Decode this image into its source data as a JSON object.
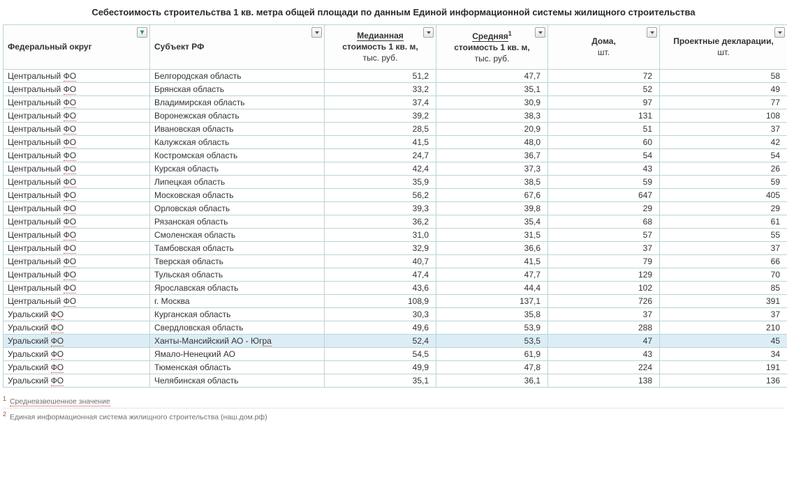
{
  "title": "Себестоимость строительства 1 кв. метра общей площади по данным Единой информационной системы жилищного строительства",
  "headers": {
    "c0": "Федеральный округ",
    "c1": "Субъект РФ",
    "c2a": "Медианная",
    "c2b": "стоимость 1 кв. м,",
    "c2c": "тыс. руб.",
    "c3a": "Средняя",
    "c3sup": "1",
    "c3b": "стоимость 1 кв. м,",
    "c3c": "тыс. руб.",
    "c4a": "Дома,",
    "c4b": "шт.",
    "c5a": "Проектные декларации,",
    "c5b": "шт."
  },
  "fo_prefix": "Центральный ",
  "fo_suffix": "ФО",
  "fo2_prefix": "Уральский ",
  "rows": [
    {
      "fo": 1,
      "subj": "Белгородская область",
      "v2": "51,2",
      "v3": "47,7",
      "v4": "72",
      "v5": "58",
      "hl": false
    },
    {
      "fo": 1,
      "subj": "Брянская область",
      "v2": "33,2",
      "v3": "35,1",
      "v4": "52",
      "v5": "49",
      "hl": false
    },
    {
      "fo": 1,
      "subj": "Владимирская область",
      "v2": "37,4",
      "v3": "30,9",
      "v4": "97",
      "v5": "77",
      "hl": false
    },
    {
      "fo": 1,
      "subj": "Воронежская область",
      "v2": "39,2",
      "v3": "38,3",
      "v4": "131",
      "v5": "108",
      "hl": false
    },
    {
      "fo": 1,
      "subj": "Ивановская область",
      "v2": "28,5",
      "v3": "20,9",
      "v4": "51",
      "v5": "37",
      "hl": false
    },
    {
      "fo": 1,
      "subj": "Калужская область",
      "v2": "41,5",
      "v3": "48,0",
      "v4": "60",
      "v5": "42",
      "hl": false
    },
    {
      "fo": 1,
      "subj": "Костромская область",
      "v2": "24,7",
      "v3": "36,7",
      "v4": "54",
      "v5": "54",
      "hl": false
    },
    {
      "fo": 1,
      "subj": "Курская область",
      "v2": "42,4",
      "v3": "37,3",
      "v4": "43",
      "v5": "26",
      "hl": false
    },
    {
      "fo": 1,
      "subj": "Липецкая область",
      "v2": "35,9",
      "v3": "38,5",
      "v4": "59",
      "v5": "59",
      "hl": false
    },
    {
      "fo": 1,
      "subj": "Московская область",
      "v2": "56,2",
      "v3": "67,6",
      "v4": "647",
      "v5": "405",
      "hl": false
    },
    {
      "fo": 1,
      "subj": "Орловская область",
      "v2": "39,3",
      "v3": "39,8",
      "v4": "29",
      "v5": "29",
      "hl": false
    },
    {
      "fo": 1,
      "subj": "Рязанская область",
      "v2": "36,2",
      "v3": "35,4",
      "v4": "68",
      "v5": "61",
      "hl": false
    },
    {
      "fo": 1,
      "subj": "Смоленская область",
      "v2": "31,0",
      "v3": "31,5",
      "v4": "57",
      "v5": "55",
      "hl": false
    },
    {
      "fo": 1,
      "subj": "Тамбовская область",
      "v2": "32,9",
      "v3": "36,6",
      "v4": "37",
      "v5": "37",
      "hl": false
    },
    {
      "fo": 1,
      "subj": "Тверская область",
      "v2": "40,7",
      "v3": "41,5",
      "v4": "79",
      "v5": "66",
      "hl": false
    },
    {
      "fo": 1,
      "subj": "Тульская область",
      "v2": "47,4",
      "v3": "47,7",
      "v4": "129",
      "v5": "70",
      "hl": false
    },
    {
      "fo": 1,
      "subj": "Ярославская область",
      "v2": "43,6",
      "v3": "44,4",
      "v4": "102",
      "v5": "85",
      "hl": false
    },
    {
      "fo": 1,
      "subj": "г. Москва",
      "v2": "108,9",
      "v3": "137,1",
      "v4": "726",
      "v5": "391",
      "hl": false
    },
    {
      "fo": 2,
      "subj": "Курганская область",
      "v2": "30,3",
      "v3": "35,8",
      "v4": "37",
      "v5": "37",
      "hl": false
    },
    {
      "fo": 2,
      "subj": "Свердловская область",
      "v2": "49,6",
      "v3": "53,9",
      "v4": "288",
      "v5": "210",
      "hl": false
    },
    {
      "fo": 2,
      "subj": "Ханты-Мансийский АО - Югра",
      "v2": "52,4",
      "v3": "53,5",
      "v4": "47",
      "v5": "45",
      "hl": true,
      "subj_ru_from": 24
    },
    {
      "fo": 2,
      "subj": "Ямало-Ненецкий АО",
      "v2": "54,5",
      "v3": "61,9",
      "v4": "43",
      "v5": "34",
      "hl": false
    },
    {
      "fo": 2,
      "subj": "Тюменская область",
      "v2": "49,9",
      "v3": "47,8",
      "v4": "224",
      "v5": "191",
      "hl": false
    },
    {
      "fo": 2,
      "subj": "Челябинская область",
      "v2": "35,1",
      "v3": "36,1",
      "v4": "138",
      "v5": "136",
      "hl": false
    }
  ],
  "footnotes": {
    "f1sup": "1",
    "f1": "Средневзвешенное значение",
    "f2sup": "2",
    "f2": "Единая информационная система жилищного строительства (наш.дом.рф)"
  },
  "style": {
    "border_color": "#b9d5d6",
    "highlight_bg": "#dcedf5",
    "red_underline": "#c04040",
    "funnel_color": "#1e8f7a"
  }
}
